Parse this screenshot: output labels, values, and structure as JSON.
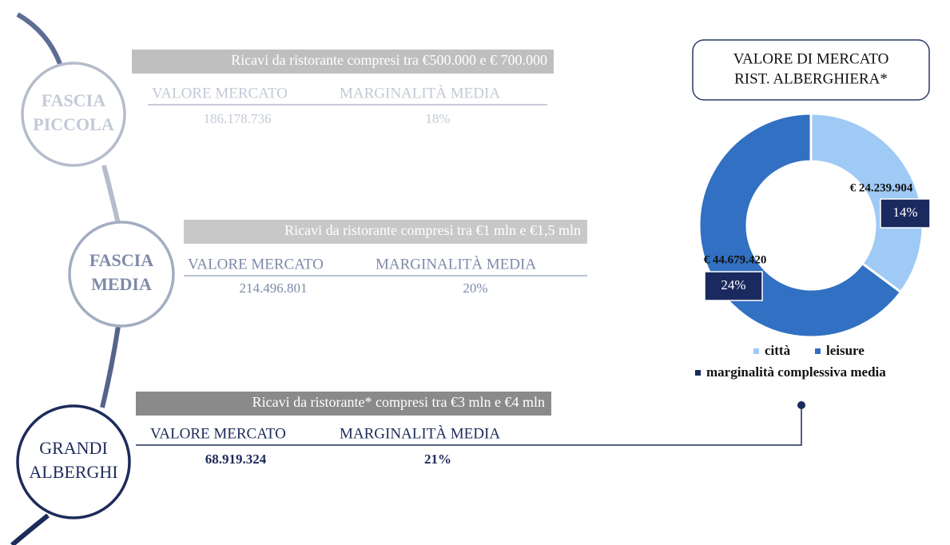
{
  "tiers": [
    {
      "label_lines": [
        "FASCIA",
        "PICCOLA"
      ],
      "range": "Ricavi da ristorante compresi tra €500.000 e € 700.000",
      "headers": [
        "VALORE MERCATO",
        "MARGINALITÀ MEDIA"
      ],
      "values": [
        "186.178.736",
        "18%"
      ]
    },
    {
      "label_lines": [
        "FASCIA",
        "MEDIA"
      ],
      "range": "Ricavi da ristorante compresi tra €1 mln e €1,5 mln",
      "headers": [
        "VALORE MERCATO",
        "MARGINALITÀ MEDIA"
      ],
      "values": [
        "214.496.801",
        "20%"
      ]
    },
    {
      "label_lines": [
        "GRANDI",
        "ALBERGHI"
      ],
      "range": "Ricavi da ristorante* compresi tra €3 mln e €4 mln",
      "headers": [
        "VALORE MERCATO",
        "MARGINALITÀ MEDIA"
      ],
      "values": [
        "68.919.324",
        "21%"
      ]
    }
  ],
  "chart_data": {
    "type": "donut",
    "title_lines": [
      "VALORE DI MERCATO",
      "RIST. ALBERGHIERA*"
    ],
    "categories": [
      "città",
      "leisure"
    ],
    "values": [
      24239904,
      44679420
    ],
    "value_labels": [
      "€ 24.239.904",
      "€ 44.679.420"
    ],
    "colors": [
      "#9fcaf5",
      "#3170c2"
    ],
    "margin_labels": [
      "14%",
      "24%"
    ],
    "margin_legend": "marginalità complessiva media",
    "margin_color": "#1b2a5e"
  }
}
